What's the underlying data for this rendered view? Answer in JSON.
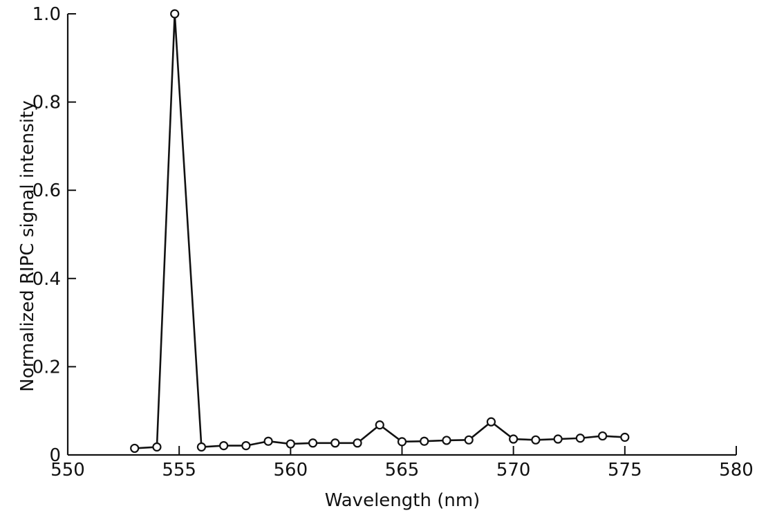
{
  "chart_data": {
    "type": "line",
    "title": "",
    "xlabel": "Wavelength (nm)",
    "ylabel": "Normalized RIPC signal intensity",
    "xlim": [
      550,
      580
    ],
    "ylim": [
      0,
      1.0
    ],
    "x_ticks": [
      550,
      555,
      560,
      565,
      570,
      575,
      580
    ],
    "x_tick_labels": [
      "550",
      "555",
      "560",
      "565",
      "570",
      "575",
      "580"
    ],
    "y_ticks": [
      0,
      0.2,
      0.4,
      0.6,
      0.8,
      1.0
    ],
    "y_tick_labels": [
      "0",
      "0.2",
      "0.4",
      "0.6",
      "0.8",
      "1.0"
    ],
    "grid": false,
    "legend": "none",
    "marker": "open-circle",
    "line_color": "#111111",
    "series": [
      {
        "x": [
          553,
          554,
          554.8,
          556,
          557,
          558,
          559,
          560,
          561,
          562,
          563,
          564,
          565,
          566,
          567,
          568,
          569,
          570,
          571,
          572,
          573,
          574,
          575
        ],
        "y": [
          0.015,
          0.018,
          1.0,
          0.018,
          0.021,
          0.021,
          0.031,
          0.025,
          0.027,
          0.027,
          0.027,
          0.068,
          0.03,
          0.031,
          0.033,
          0.034,
          0.075,
          0.036,
          0.034,
          0.036,
          0.038,
          0.043,
          0.04
        ]
      }
    ]
  }
}
